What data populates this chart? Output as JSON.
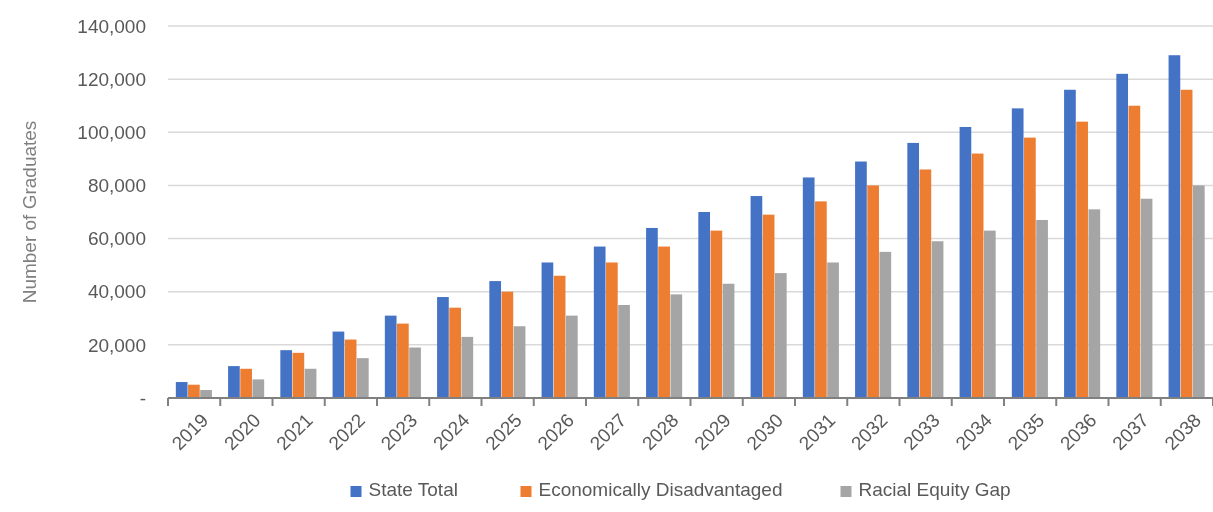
{
  "chart_data": {
    "type": "bar",
    "ylabel": "Number of Graduates",
    "categories": [
      "2019",
      "2020",
      "2021",
      "2022",
      "2023",
      "2024",
      "2025",
      "2026",
      "2027",
      "2028",
      "2029",
      "2030",
      "2031",
      "2032",
      "2033",
      "2034",
      "2035",
      "2036",
      "2037",
      "2038"
    ],
    "series": [
      {
        "name": "State Total",
        "color": "#4472c4",
        "values": [
          6000,
          12000,
          18000,
          25000,
          31000,
          38000,
          44000,
          51000,
          57000,
          64000,
          70000,
          76000,
          83000,
          89000,
          96000,
          102000,
          109000,
          116000,
          122000,
          129000
        ]
      },
      {
        "name": "Economically Disadvantaged",
        "color": "#ed7d31",
        "values": [
          5000,
          11000,
          17000,
          22000,
          28000,
          34000,
          40000,
          46000,
          51000,
          57000,
          63000,
          69000,
          74000,
          80000,
          86000,
          92000,
          98000,
          104000,
          110000,
          116000
        ]
      },
      {
        "name": "Racial Equity Gap",
        "color": "#a5a5a5",
        "values": [
          3000,
          7000,
          11000,
          15000,
          19000,
          23000,
          27000,
          31000,
          35000,
          39000,
          43000,
          47000,
          51000,
          55000,
          59000,
          63000,
          67000,
          71000,
          75000,
          80000
        ]
      }
    ],
    "ylim": [
      0,
      140000
    ],
    "yticks": [
      {
        "value": 0,
        "label": "-"
      },
      {
        "value": 20000,
        "label": "20,000"
      },
      {
        "value": 40000,
        "label": "40,000"
      },
      {
        "value": 60000,
        "label": "60,000"
      },
      {
        "value": 80000,
        "label": "80,000"
      },
      {
        "value": 100000,
        "label": "100,000"
      },
      {
        "value": 120000,
        "label": "120,000"
      },
      {
        "value": 140000,
        "label": "140,000"
      }
    ],
    "grid": "y",
    "legend": "bottom"
  }
}
